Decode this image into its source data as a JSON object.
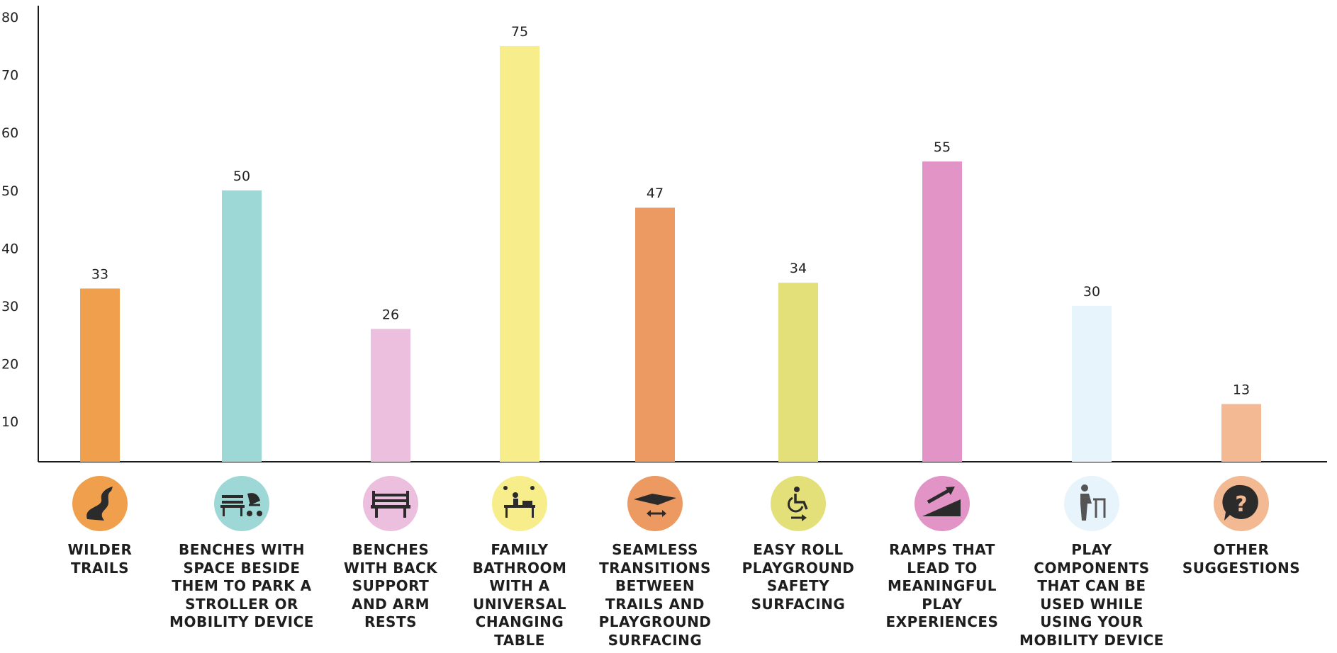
{
  "chart_data": {
    "type": "bar",
    "yticks": [
      10,
      20,
      30,
      40,
      50,
      60,
      70,
      80
    ],
    "ylim": [
      3,
      81
    ],
    "grid": false,
    "categories": [
      {
        "label": "WILDER\nTRAILS",
        "value": 33,
        "color": "#f0a04c",
        "icon": "winding-trail-icon"
      },
      {
        "label": "BENCHES WITH\nSPACE BESIDE\nTHEM TO PARK A\nSTROLLER OR\nMOBILITY DEVICE",
        "value": 50,
        "color": "#9ed8d6",
        "icon": "bench-stroller-icon"
      },
      {
        "label": "BENCHES\nWITH BACK\nSUPPORT\nAND ARM\nRESTS",
        "value": 26,
        "color": "#ebbfdd",
        "icon": "bench-icon"
      },
      {
        "label": "FAMILY\nBATHROOM\nWITH A\nUNIVERSAL\nCHANGING\nTABLE",
        "value": 75,
        "color": "#f7ed8a",
        "icon": "changing-table-icon"
      },
      {
        "label": "SEAMLESS\nTRANSITIONS\nBETWEEN\nTRAILS AND\nPLAYGROUND\nSURFACING",
        "value": 47,
        "color": "#ec9a62",
        "icon": "transition-surface-icon"
      },
      {
        "label": "EASY ROLL\nPLAYGROUND\nSAFETY\nSURFACING",
        "value": 34,
        "color": "#e3e07a",
        "icon": "wheelchair-icon"
      },
      {
        "label": "RAMPS THAT\nLEAD TO\nMEANINGFUL\nPLAY\nEXPERIENCES",
        "value": 55,
        "color": "#e394c6",
        "icon": "ramp-icon"
      },
      {
        "label": "PLAY\nCOMPONENTS\nTHAT CAN BE\nUSED WHILE\nUSING YOUR\nMOBILITY DEVICE",
        "value": 30,
        "color": "#e8f4fb",
        "icon": "walker-icon"
      },
      {
        "label": "OTHER\nSUGGESTIONS",
        "value": 13,
        "color": "#f2b993",
        "icon": "question-icon"
      }
    ]
  }
}
